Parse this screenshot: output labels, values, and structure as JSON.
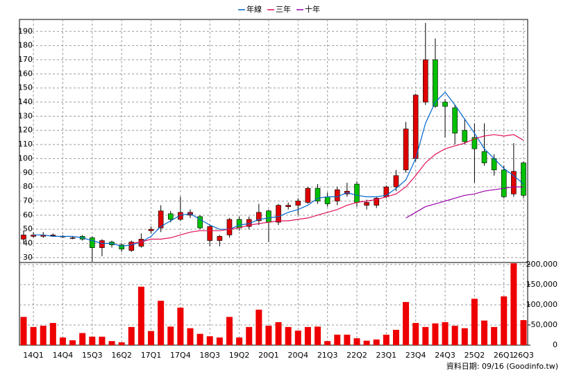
{
  "chart_data": [
    {
      "type": "candlestick",
      "categories": [
        null,
        "14Q1",
        null,
        null,
        "14Q4",
        null,
        null,
        "15Q3",
        null,
        null,
        "16Q2",
        null,
        null,
        "17Q1",
        null,
        null,
        "17Q4",
        null,
        null,
        "18Q3",
        null,
        null,
        "19Q2",
        null,
        null,
        "20Q1",
        null,
        null,
        "20Q4",
        null,
        null,
        "21Q3",
        null,
        null,
        "22Q2",
        null,
        null,
        "23Q1",
        null,
        null,
        "23Q4",
        null,
        null,
        "24Q3",
        null,
        null,
        "25Q2",
        null,
        null,
        "26Q1",
        null,
        "26Q3"
      ],
      "open": [
        43,
        45,
        45,
        46,
        45,
        44,
        45,
        44,
        37,
        41,
        39,
        35,
        38,
        49,
        51,
        61,
        57,
        60,
        59,
        42,
        42,
        46,
        57,
        52,
        56,
        63,
        55,
        66,
        67,
        69,
        79,
        73,
        70,
        75,
        82,
        67,
        67,
        73,
        80,
        92,
        100,
        140,
        170,
        140,
        136,
        120,
        115,
        105,
        100,
        92,
        75,
        97
      ],
      "high": [
        49,
        48,
        48,
        47,
        46,
        45,
        46,
        45,
        43,
        42,
        40,
        42,
        47,
        52,
        67,
        63,
        73,
        64,
        60,
        53,
        46,
        58,
        59,
        59,
        68,
        64,
        68,
        69,
        72,
        80,
        82,
        76,
        80,
        83,
        84,
        71,
        73,
        81,
        92,
        126,
        146,
        196,
        185,
        142,
        138,
        128,
        125,
        125,
        103,
        95,
        111,
        98
      ],
      "low": [
        40,
        44,
        44,
        45,
        44,
        43,
        42,
        27,
        31,
        37,
        34,
        34,
        37,
        47,
        48,
        55,
        56,
        58,
        50,
        38,
        38,
        44,
        49,
        50,
        53,
        41,
        53,
        64,
        60,
        68,
        68,
        66,
        67,
        73,
        66,
        64,
        65,
        72,
        77,
        90,
        98,
        138,
        136,
        115,
        110,
        110,
        83,
        95,
        88,
        72,
        73,
        72
      ],
      "close": [
        46,
        46,
        46,
        46,
        45,
        44,
        43,
        37,
        42,
        39,
        36,
        41,
        43,
        50,
        63,
        57,
        62,
        62,
        51,
        52,
        45,
        57,
        51,
        57,
        62,
        55,
        67,
        67,
        70,
        79,
        70,
        68,
        78,
        77,
        69,
        69,
        72,
        80,
        88,
        121,
        145,
        170,
        137,
        137,
        118,
        112,
        107,
        97,
        92,
        73,
        91,
        74
      ],
      "up_color": "#e00000",
      "down_color": "#00c000",
      "series": [
        {
          "name": "年線",
          "color": "#0066cc",
          "values": [
            null,
            46,
            46,
            45,
            45,
            45,
            44,
            42,
            40,
            40,
            38,
            39,
            41,
            45,
            52,
            56,
            60,
            61,
            57,
            53,
            50,
            50,
            53,
            54,
            57,
            58,
            59,
            62,
            64,
            67,
            72,
            73,
            73,
            76,
            74,
            73,
            73,
            74,
            79,
            85,
            100,
            125,
            140,
            147,
            138,
            128,
            118,
            107,
            100,
            93,
            88,
            82
          ]
        },
        {
          "name": "三年",
          "color": "#e0105a",
          "values": [
            null,
            null,
            null,
            null,
            null,
            null,
            null,
            null,
            null,
            null,
            null,
            40,
            41,
            43,
            43,
            44,
            46,
            48,
            49,
            49,
            49,
            50,
            51,
            53,
            54,
            55,
            56,
            56,
            57,
            58,
            60,
            62,
            64,
            67,
            69,
            70,
            71,
            73,
            75,
            80,
            88,
            97,
            103,
            107,
            109,
            111,
            114,
            116,
            117,
            116,
            117,
            113
          ]
        },
        {
          "name": "十年",
          "color": "#9900aa",
          "values": [
            null,
            null,
            null,
            null,
            null,
            null,
            null,
            null,
            null,
            null,
            null,
            null,
            null,
            null,
            null,
            null,
            null,
            null,
            null,
            null,
            null,
            null,
            null,
            null,
            null,
            null,
            null,
            null,
            null,
            null,
            null,
            null,
            null,
            null,
            null,
            null,
            null,
            null,
            null,
            58,
            62,
            66,
            68,
            70,
            72,
            74,
            75,
            77,
            78,
            79,
            80,
            80
          ]
        }
      ],
      "ylim": [
        26.5,
        198.5
      ],
      "yticks": [
        30,
        40,
        50,
        60,
        70,
        80,
        90,
        100,
        110,
        120,
        130,
        140,
        150,
        160,
        170,
        180,
        190
      ],
      "grid": true,
      "source": "資料日期: 09/16 (Goodinfo.tw)"
    },
    {
      "type": "bar",
      "values": [
        70000,
        45000,
        48000,
        55000,
        19000,
        12000,
        30000,
        21000,
        21000,
        10000,
        7000,
        45000,
        145000,
        35000,
        110000,
        46000,
        93000,
        42000,
        28000,
        22000,
        19000,
        70000,
        19000,
        45000,
        88000,
        48000,
        57000,
        45000,
        36000,
        45000,
        46000,
        10000,
        26000,
        26000,
        17000,
        11000,
        14000,
        26000,
        38000,
        107000,
        55000,
        45000,
        54000,
        57000,
        48000,
        42000,
        115000,
        61000,
        45000,
        121000,
        203000,
        62000
      ],
      "color": "#ee0000",
      "ylim": [
        0,
        205000
      ],
      "yticks": [
        0,
        {
          "value": 50000,
          "label": "50,000"
        },
        {
          "value": 100000,
          "label": "100,000"
        },
        {
          "value": 150000,
          "label": "150,000"
        },
        {
          "value": 200000,
          "label": "200,000"
        }
      ],
      "grid": true
    }
  ]
}
